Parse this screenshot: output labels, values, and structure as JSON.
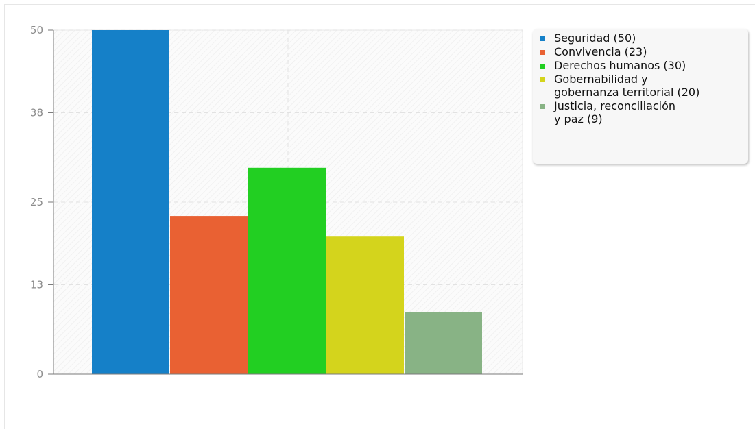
{
  "chart_data": {
    "type": "bar",
    "title": "",
    "xlabel": "",
    "ylabel": "",
    "ylim": [
      0,
      50
    ],
    "y_ticks": [
      0,
      13,
      25,
      38,
      50
    ],
    "grid": true,
    "legend_position": "right",
    "series": [
      {
        "name": "Seguridad (50)",
        "value": 50,
        "color": "#1580c8"
      },
      {
        "name": "Convivencia (23)",
        "value": 23,
        "color": "#e96133"
      },
      {
        "name": "Derechos humanos (30)",
        "value": 30,
        "color": "#22cf22"
      },
      {
        "name": "Gobernabilidad y gobernanza territorial (20)",
        "value": 20,
        "color": "#d4d41c"
      },
      {
        "name": "Justicia, reconciliación y paz (9)",
        "value": 9,
        "color": "#88b385"
      }
    ]
  },
  "legend": {
    "items": [
      {
        "lines": [
          "Seguridad (50)"
        ]
      },
      {
        "lines": [
          "Convivencia (23)"
        ]
      },
      {
        "lines": [
          "Derechos humanos (30)"
        ]
      },
      {
        "lines": [
          "Gobernabilidad y",
          "gobernanza territorial (20)"
        ]
      },
      {
        "lines": [
          "Justicia, reconciliación",
          "y paz (9)"
        ]
      }
    ]
  }
}
